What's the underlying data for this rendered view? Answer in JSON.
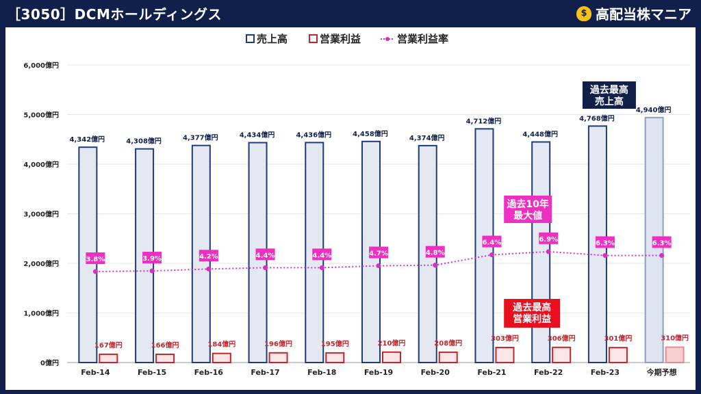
{
  "header": {
    "title": "［3050］DCMホールディングス",
    "brand": "高配当株マニア",
    "brand_icon": "money-bag-icon"
  },
  "chart_data": {
    "type": "bar",
    "categories": [
      "Feb-14",
      "Feb-15",
      "Feb-16",
      "Feb-17",
      "Feb-18",
      "Feb-19",
      "Feb-20",
      "Feb-21",
      "Feb-22",
      "Feb-23",
      "今期予想"
    ],
    "series": [
      {
        "name": "売上高",
        "type": "bar",
        "color": "#1f3a78",
        "values": [
          4342,
          4308,
          4377,
          4434,
          4436,
          4458,
          4374,
          4712,
          4448,
          4768,
          4940
        ],
        "labels": [
          "4,342億円",
          "4,308億円",
          "4,377億円",
          "4,434億円",
          "4,436億円",
          "4,458億円",
          "4,374億円",
          "4,712億円",
          "4,448億円",
          "4,768億円",
          "4,940億円"
        ]
      },
      {
        "name": "営業利益",
        "type": "bar",
        "color": "#c0262d",
        "values": [
          167,
          166,
          184,
          196,
          195,
          210,
          208,
          303,
          306,
          301,
          310
        ],
        "labels": [
          "167億円",
          "166億円",
          "184億円",
          "196億円",
          "195億円",
          "210億円",
          "208億円",
          "303億円",
          "306億円",
          "301億円",
          "310億円"
        ]
      },
      {
        "name": "営業利益率",
        "type": "line",
        "color": "#d62ec8",
        "values": [
          3.8,
          3.9,
          4.2,
          4.4,
          4.4,
          4.7,
          4.8,
          6.4,
          6.9,
          6.3,
          6.3
        ],
        "labels": [
          "3.8%",
          "3.9%",
          "4.2%",
          "4.4%",
          "4.4%",
          "4.7%",
          "4.8%",
          "6.4%",
          "6.9%",
          "6.3%",
          "6.3%"
        ]
      }
    ],
    "forecast_category": "今期予想",
    "ylim": [
      0,
      6000
    ],
    "yticks": [
      0,
      1000,
      2000,
      3000,
      4000,
      5000,
      6000
    ],
    "ytick_labels": [
      "0億円",
      "1,000億円",
      "2,000億円",
      "3,000億円",
      "4,000億円",
      "5,000億円",
      "6,000億円"
    ],
    "grid": true,
    "legend_position": "top-center",
    "annotations": [
      {
        "name": "record-sales-callout",
        "lines": [
          "過去最高",
          "売上高"
        ],
        "bg": "#10204a",
        "category": "Feb-23"
      },
      {
        "name": "record-margin-callout",
        "lines": [
          "過去10年",
          "最大値"
        ],
        "bg": "#ee2fc2",
        "category": "Feb-22"
      },
      {
        "name": "record-profit-callout",
        "lines": [
          "過去最高",
          "営業利益"
        ],
        "bg": "#e8101e",
        "category": "Feb-22"
      }
    ]
  }
}
